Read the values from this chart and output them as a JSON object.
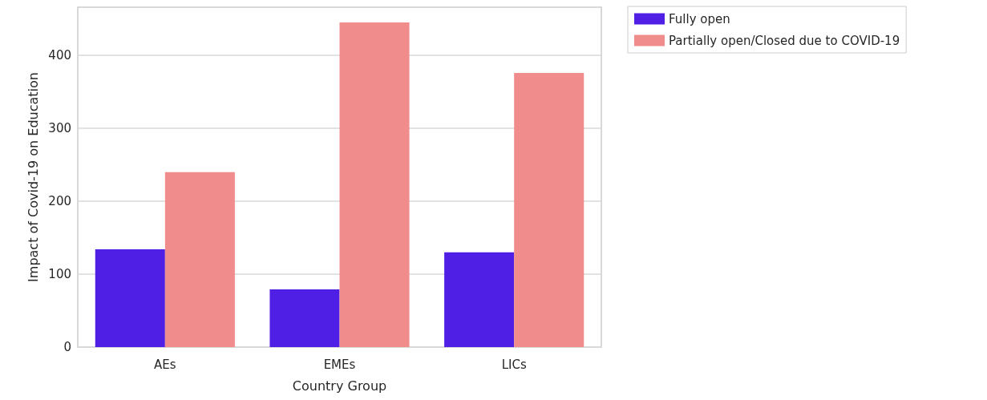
{
  "chart_data": {
    "type": "bar",
    "xlabel": "Country Group",
    "ylabel": "Impact of Covid-19 on Education",
    "categories": [
      "AEs",
      "EMEs",
      "LICs"
    ],
    "series": [
      {
        "name": "Fully open",
        "color": "#4f1fe6",
        "values": [
          134,
          79,
          130
        ]
      },
      {
        "name": "Partially open/Closed due to COVID-19",
        "color": "#f08c8c",
        "values": [
          240,
          445,
          376
        ]
      }
    ],
    "ylim": [
      0,
      466
    ],
    "yticks": [
      0,
      100,
      200,
      300,
      400
    ],
    "grid": "y",
    "legend": "top right"
  }
}
